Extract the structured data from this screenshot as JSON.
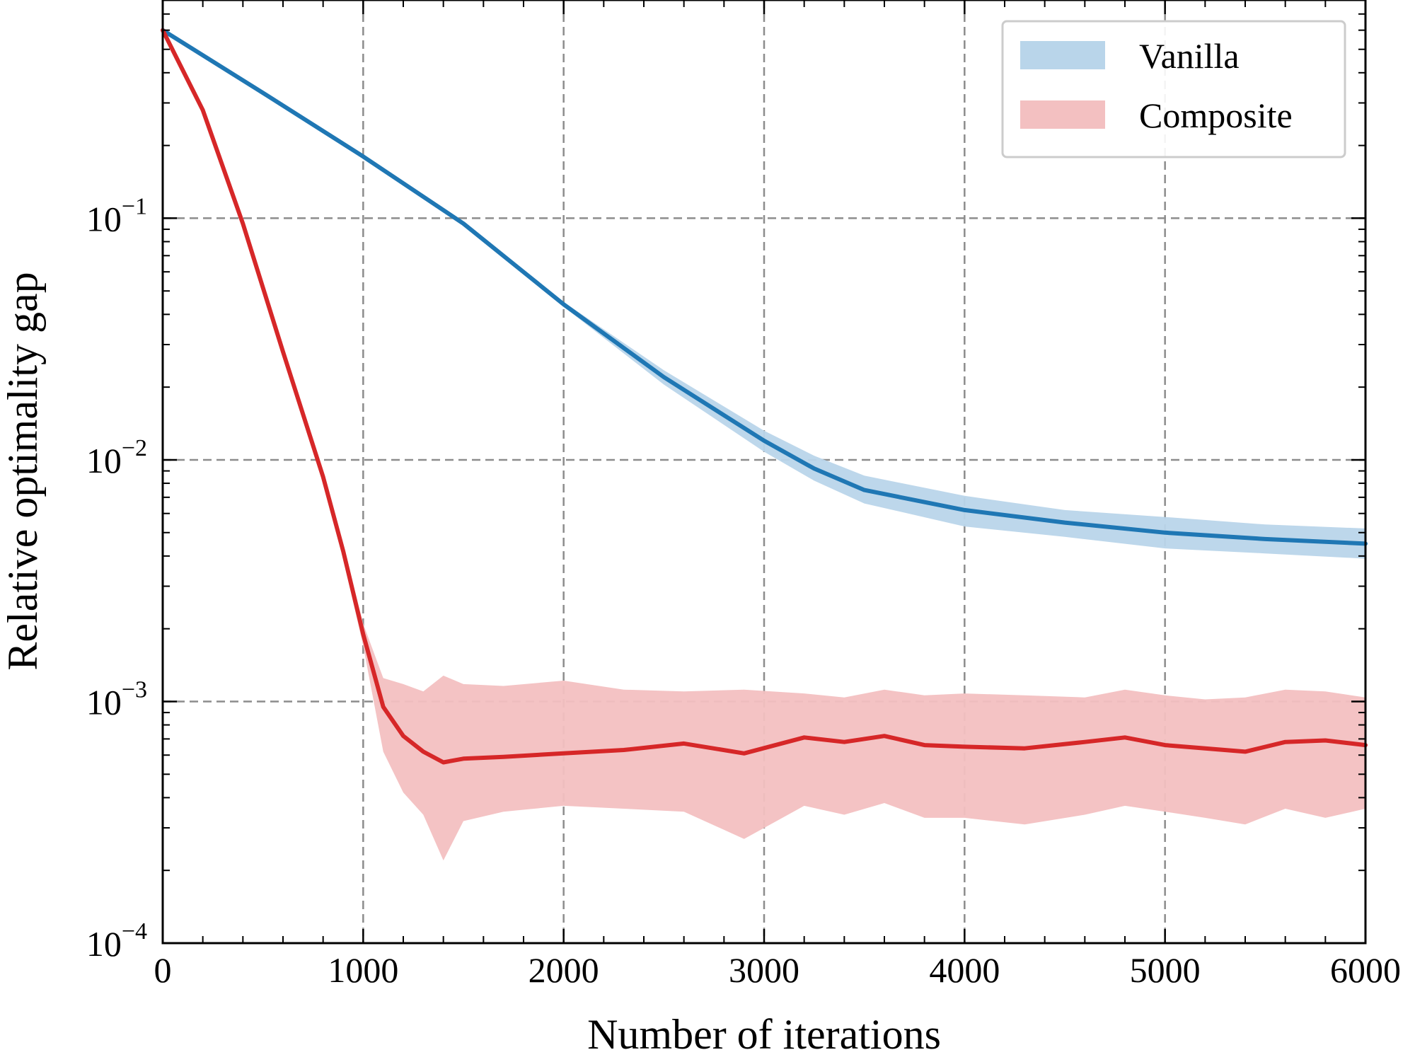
{
  "chart_data": {
    "type": "line",
    "title": "",
    "xlabel": "Number of iterations",
    "ylabel": "Relative optimality gap",
    "xlim": [
      0,
      6000
    ],
    "ylim": [
      0.0001,
      0.8
    ],
    "yscale": "log",
    "grid": true,
    "legend_position": "top-right",
    "x_ticks": [
      {
        "value": 0,
        "label": "0"
      },
      {
        "value": 1000,
        "label": "1000"
      },
      {
        "value": 2000,
        "label": "2000"
      },
      {
        "value": 3000,
        "label": "3000"
      },
      {
        "value": 4000,
        "label": "4000"
      },
      {
        "value": 5000,
        "label": "5000"
      },
      {
        "value": 6000,
        "label": "6000"
      }
    ],
    "y_ticks": [
      {
        "value": 0.0001,
        "base": "10",
        "exponent": "−4"
      },
      {
        "value": 0.001,
        "base": "10",
        "exponent": "−3"
      },
      {
        "value": 0.01,
        "base": "10",
        "exponent": "−2"
      },
      {
        "value": 0.1,
        "base": "10",
        "exponent": "−1"
      }
    ],
    "series": [
      {
        "name": "Vanilla",
        "line_color": "#1f77b4",
        "band_color": "#b9d5ea",
        "x": [
          0,
          500,
          1000,
          1500,
          2000,
          2500,
          3000,
          3250,
          3500,
          4000,
          4500,
          5000,
          5500,
          6000
        ],
        "y": [
          0.6,
          0.33,
          0.18,
          0.095,
          0.044,
          0.022,
          0.012,
          0.0092,
          0.0075,
          0.0062,
          0.0055,
          0.005,
          0.0047,
          0.0045
        ],
        "lower": [
          0.6,
          0.33,
          0.18,
          0.094,
          0.043,
          0.0205,
          0.0108,
          0.0082,
          0.0066,
          0.0053,
          0.0048,
          0.0043,
          0.0041,
          0.0039
        ],
        "upper": [
          0.6,
          0.33,
          0.18,
          0.096,
          0.045,
          0.0235,
          0.0132,
          0.0104,
          0.0086,
          0.0071,
          0.0062,
          0.0058,
          0.0054,
          0.0052
        ]
      },
      {
        "name": "Composite",
        "line_color": "#d62728",
        "band_color": "#f3c0c1",
        "x": [
          0,
          200,
          400,
          600,
          800,
          900,
          1000,
          1100,
          1200,
          1300,
          1400,
          1500,
          1700,
          2000,
          2300,
          2600,
          2900,
          3200,
          3400,
          3600,
          3800,
          4000,
          4300,
          4600,
          4800,
          5000,
          5200,
          5400,
          5600,
          5800,
          6000
        ],
        "y": [
          0.6,
          0.28,
          0.095,
          0.028,
          0.0085,
          0.0042,
          0.0019,
          0.00095,
          0.00072,
          0.00062,
          0.00056,
          0.00058,
          0.00059,
          0.00061,
          0.00063,
          0.00067,
          0.00061,
          0.00071,
          0.00068,
          0.00072,
          0.00066,
          0.00065,
          0.00064,
          0.00068,
          0.00071,
          0.00066,
          0.00064,
          0.00062,
          0.00068,
          0.00069,
          0.00066
        ],
        "lower": [
          0.6,
          0.28,
          0.095,
          0.027,
          0.0081,
          0.0039,
          0.0017,
          0.00062,
          0.00042,
          0.00034,
          0.00022,
          0.00032,
          0.00035,
          0.00037,
          0.00036,
          0.00035,
          0.00027,
          0.00037,
          0.00034,
          0.00038,
          0.00033,
          0.00033,
          0.00031,
          0.00034,
          0.00037,
          0.00035,
          0.00033,
          0.00031,
          0.00036,
          0.00033,
          0.00036
        ],
        "upper": [
          0.6,
          0.28,
          0.095,
          0.029,
          0.009,
          0.0045,
          0.0021,
          0.00125,
          0.00118,
          0.0011,
          0.00128,
          0.00118,
          0.00116,
          0.00122,
          0.00112,
          0.0011,
          0.00112,
          0.00108,
          0.00104,
          0.00112,
          0.00106,
          0.00108,
          0.00106,
          0.00104,
          0.00112,
          0.00106,
          0.00102,
          0.00104,
          0.00112,
          0.0011,
          0.00104
        ]
      }
    ]
  }
}
